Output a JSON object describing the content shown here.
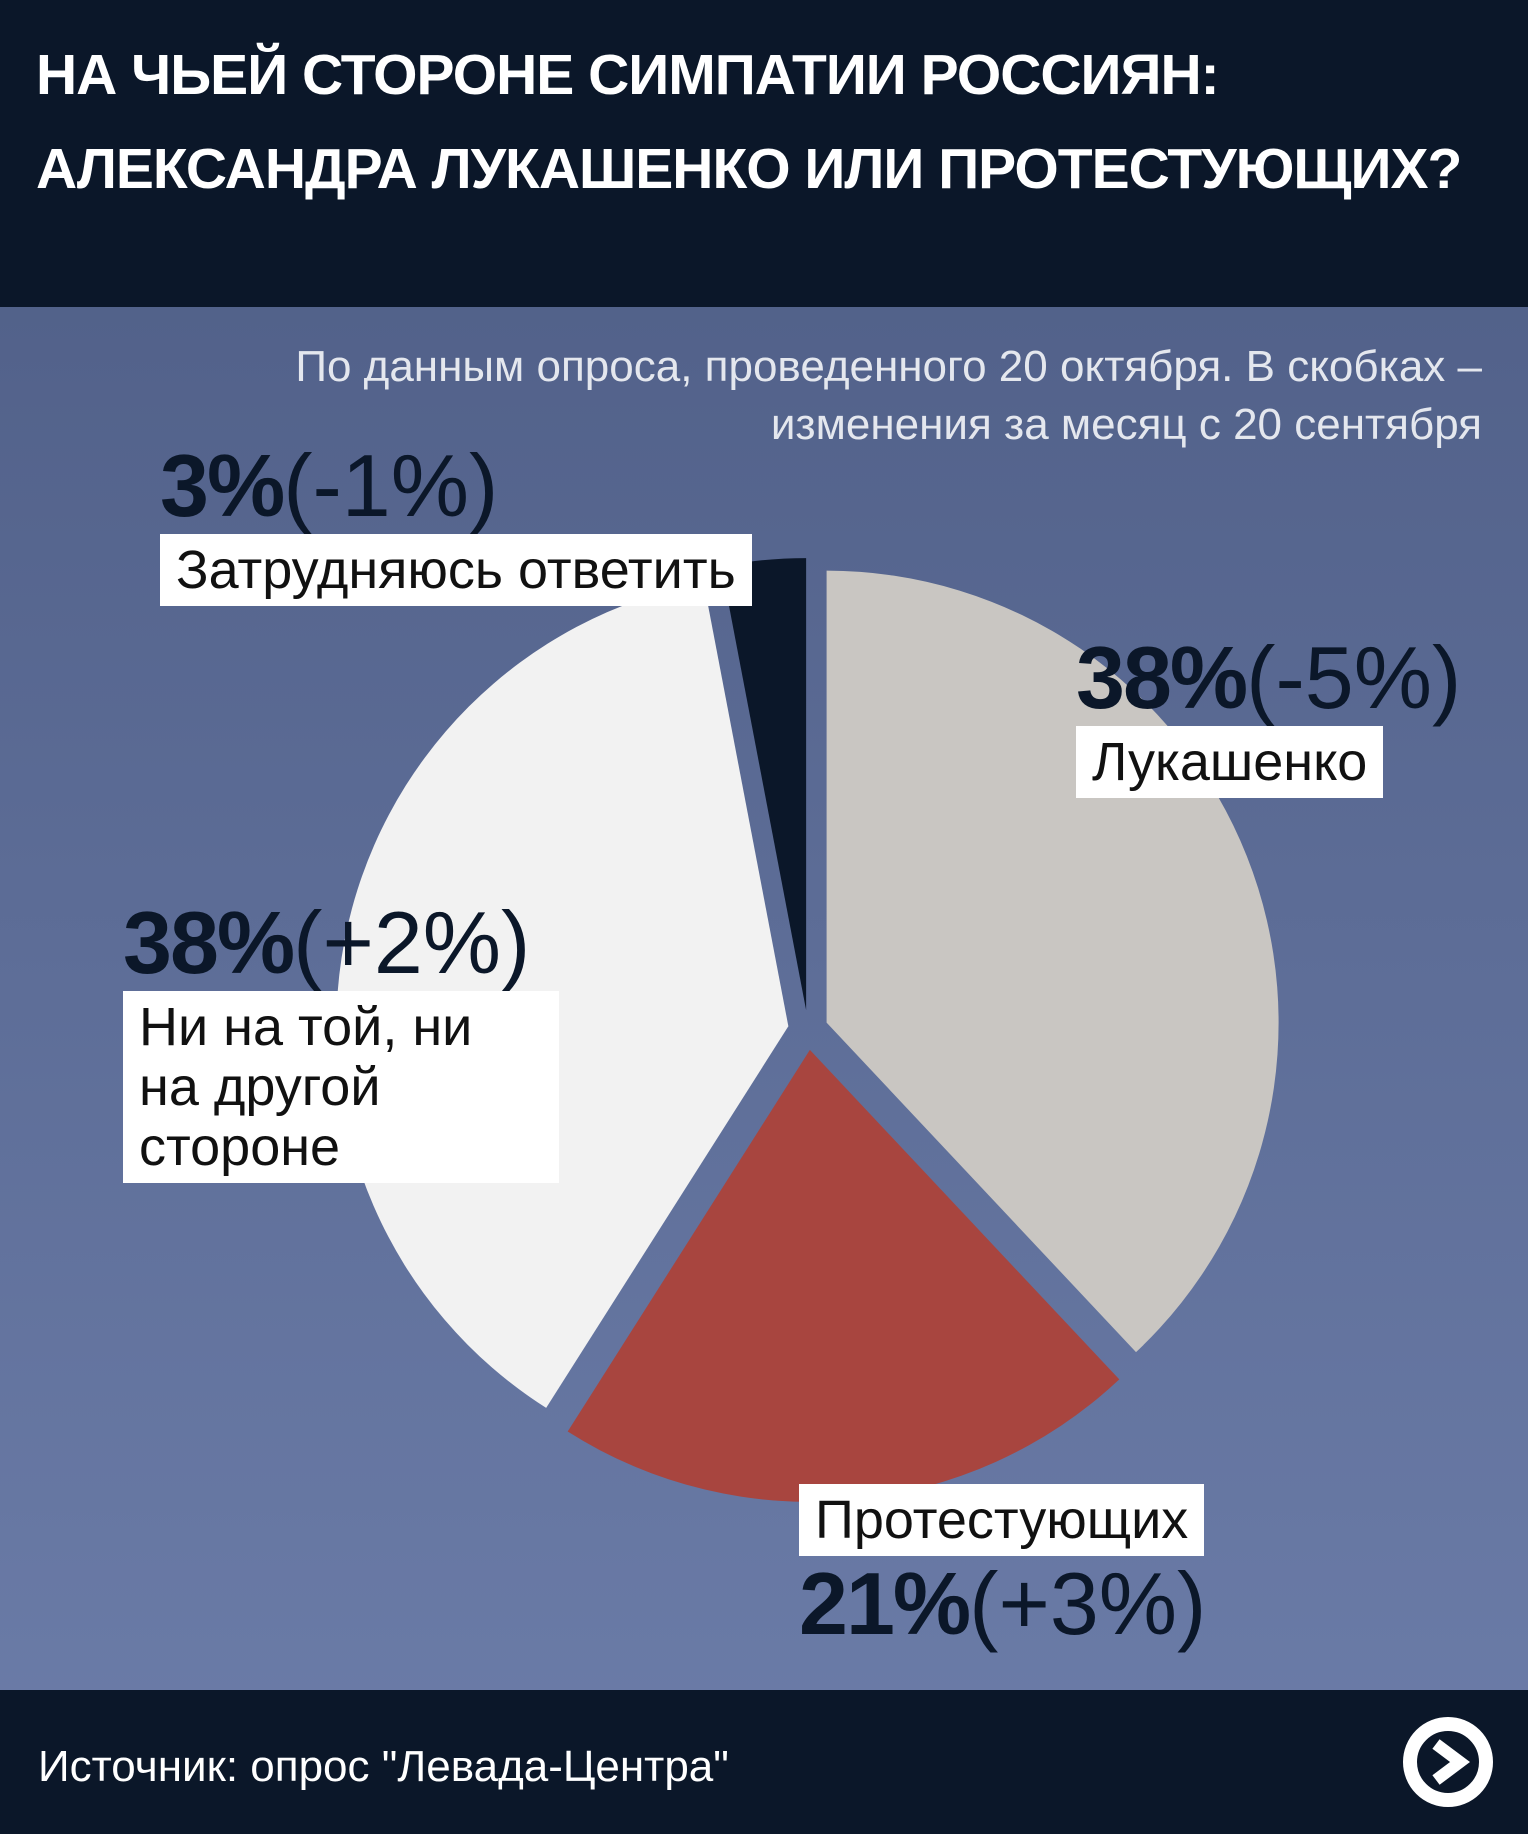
{
  "chart_data": {
    "type": "pie",
    "title": "НА ЧЬЕЙ СТОРОНЕ СИМПАТИИ РОССИЯН: АЛЕКСАНДРА ЛУКАШЕНКО ИЛИ ПРОТЕСТУЮЩИХ?",
    "subtitle": "По данным опроса, проведенного 20 октября. В скобках – изменения за месяц с 20 сентября",
    "categories": [
      "Лукашенко",
      "Протестующих",
      "Ни на той, ни на другой стороне",
      "Затрудняюсь ответить"
    ],
    "values": [
      38,
      21,
      38,
      3
    ],
    "value_labels": [
      "38%",
      "21%",
      "38%",
      "3%"
    ],
    "change_labels": [
      "(-5%)",
      "(+3%)",
      "(+2%)",
      "(-1%)"
    ],
    "colors": [
      "#c9c6c2",
      "#a8453f",
      "#f2f2f2",
      "#0b1729"
    ],
    "source": "Источник: опрос \"Левада-Центра\""
  }
}
